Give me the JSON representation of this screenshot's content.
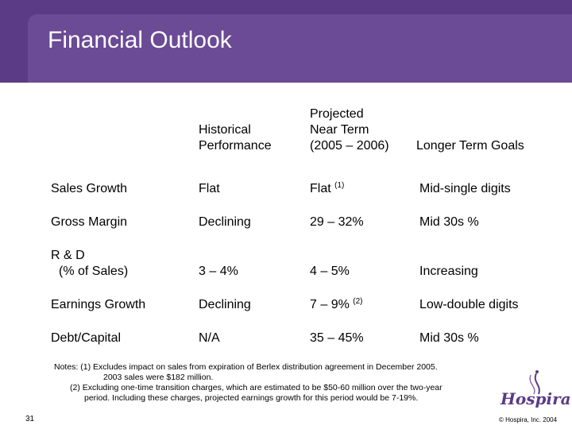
{
  "slide": {
    "title": "Financial Outlook",
    "page_number": "31",
    "copyright": "© Hospira, Inc. 2004",
    "logo_text": "Hospira",
    "accent_color": "#5b3a86"
  },
  "table": {
    "headers": {
      "historical": [
        "Historical",
        "Performance"
      ],
      "near_term": [
        "Projected",
        "Near Term",
        "(2005 – 2006)"
      ],
      "longer_term": [
        "Longer Term Goals"
      ]
    },
    "rows": [
      {
        "label": "Sales Growth",
        "historical": "Flat",
        "near_term": "Flat",
        "near_term_note": "(1)",
        "longer_term": "Mid-single digits"
      },
      {
        "label": "Gross Margin",
        "historical": "Declining",
        "near_term": "29 – 32%",
        "near_term_note": "",
        "longer_term": "Mid 30s %"
      },
      {
        "label_line1": "R & D",
        "label_line2": "(% of Sales)",
        "historical": "3 – 4%",
        "near_term": "4 – 5%",
        "near_term_note": "",
        "longer_term": "Increasing"
      },
      {
        "label": "Earnings Growth",
        "historical": "Declining",
        "near_term": "7 – 9%",
        "near_term_note": "(2)",
        "longer_term": "Low-double digits"
      },
      {
        "label": "Debt/Capital",
        "historical": "N/A",
        "near_term": "35 – 45%",
        "near_term_note": "",
        "longer_term": "Mid 30s %"
      }
    ]
  },
  "notes": {
    "line1": "Notes: (1) Excludes impact on sales from expiration of Berlex distribution agreement in December 2005.",
    "line2": "2003 sales were $182 million.",
    "line3": "(2) Excluding one-time transition charges, which are estimated to be $50-60 million over the two-year",
    "line4": "period. Including these charges, projected earnings growth for this period would be 7-19%."
  }
}
